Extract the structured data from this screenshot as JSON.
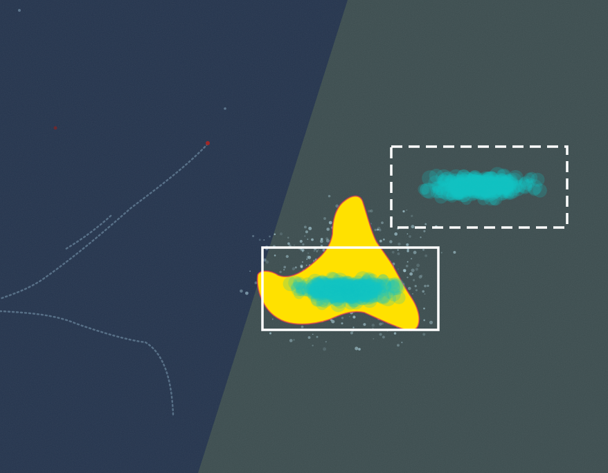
{
  "image": {
    "description_kind": "false-color microscopy overlay",
    "colors": {
      "dark_region": "#24344d",
      "light_region": "#3c4d4f",
      "yellow_mask": "#ffe100",
      "yellow_edge": "#e0305a",
      "cyan_points": "#14c4c4",
      "speckle": "#bfe6f2",
      "red_dot": "#a02828",
      "box_stroke": "#ffffff"
    },
    "boxes": [
      {
        "name": "solid-box",
        "style": "solid"
      },
      {
        "name": "dashed-box",
        "style": "dashed"
      }
    ]
  }
}
